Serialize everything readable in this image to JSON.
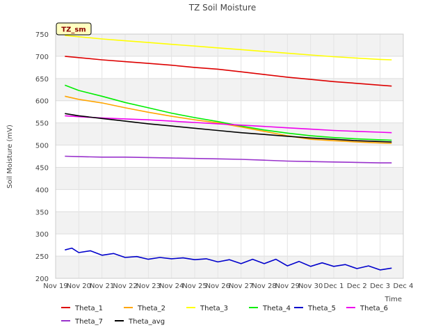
{
  "chart_data": {
    "type": "line",
    "title": "TZ Soil Moisture",
    "xlabel": "Time",
    "ylabel": "Soil Moisture (mV)",
    "badge": "TZ_sm",
    "ylim": [
      200,
      750
    ],
    "yticks": [
      200,
      250,
      300,
      350,
      400,
      450,
      500,
      550,
      600,
      650,
      700,
      750
    ],
    "xlim": [
      0,
      15
    ],
    "xticks": [
      {
        "pos": 0,
        "label": "Nov 19"
      },
      {
        "pos": 1,
        "label": "Nov 20"
      },
      {
        "pos": 2,
        "label": "Nov 21"
      },
      {
        "pos": 3,
        "label": "Nov 22"
      },
      {
        "pos": 4,
        "label": "Nov 23"
      },
      {
        "pos": 5,
        "label": "Nov 24"
      },
      {
        "pos": 6,
        "label": "Nov 25"
      },
      {
        "pos": 7,
        "label": "Nov 26"
      },
      {
        "pos": 8,
        "label": "Nov 27"
      },
      {
        "pos": 9,
        "label": "Nov 28"
      },
      {
        "pos": 10,
        "label": "Nov 29"
      },
      {
        "pos": 11,
        "label": "Nov 30"
      },
      {
        "pos": 12,
        "label": "Dec 1"
      },
      {
        "pos": 13,
        "label": "Dec 2"
      },
      {
        "pos": 14,
        "label": "Dec 3"
      },
      {
        "pos": 15,
        "label": "Dec 4"
      }
    ],
    "grid": true,
    "series": [
      {
        "name": "Theta_1",
        "color": "#dd0000",
        "x": [
          0.4,
          1,
          2,
          3,
          4,
          5,
          6,
          7,
          8,
          9,
          10,
          11,
          12,
          13,
          14,
          14.5
        ],
        "y": [
          700,
          697,
          692,
          688,
          684,
          680,
          675,
          671,
          665,
          659,
          653,
          648,
          643,
          639,
          635,
          633
        ]
      },
      {
        "name": "Theta_2",
        "color": "#ffa500",
        "x": [
          0.4,
          1,
          2,
          3,
          4,
          5,
          6,
          7,
          8,
          9,
          10,
          11,
          12,
          13,
          14,
          14.5
        ],
        "y": [
          610,
          603,
          595,
          584,
          574,
          565,
          557,
          550,
          541,
          531,
          521,
          513,
          510,
          507,
          505,
          504
        ]
      },
      {
        "name": "Theta_3",
        "color": "#ffff00",
        "x": [
          0.4,
          1,
          2,
          3,
          4,
          5,
          6,
          7,
          8,
          9,
          10,
          11,
          12,
          13,
          14,
          14.5
        ],
        "y": [
          747,
          744,
          739,
          735,
          731,
          727,
          723,
          719,
          715,
          711,
          707,
          703,
          699,
          696,
          693,
          692
        ]
      },
      {
        "name": "Theta_4",
        "color": "#00ee00",
        "x": [
          0.4,
          1,
          2,
          3,
          4,
          5,
          6,
          7,
          8,
          9,
          10,
          11,
          12,
          13,
          14,
          14.5
        ],
        "y": [
          635,
          623,
          610,
          596,
          584,
          572,
          562,
          553,
          543,
          534,
          527,
          521,
          517,
          514,
          512,
          511
        ]
      },
      {
        "name": "Theta_5",
        "color": "#0000cc",
        "x": [
          0.4,
          0.7,
          1,
          1.5,
          2,
          2.5,
          3,
          3.5,
          4,
          4.5,
          5,
          5.5,
          6,
          6.5,
          7,
          7.5,
          8,
          8.5,
          9,
          9.5,
          10,
          10.5,
          11,
          11.5,
          12,
          12.5,
          13,
          13.5,
          14,
          14.5
        ],
        "y": [
          264,
          268,
          258,
          262,
          252,
          256,
          247,
          249,
          243,
          247,
          244,
          246,
          242,
          244,
          237,
          242,
          233,
          243,
          233,
          243,
          228,
          238,
          227,
          235,
          227,
          231,
          222,
          228,
          219,
          223
        ]
      },
      {
        "name": "Theta_6",
        "color": "#ee00ee",
        "x": [
          0.4,
          1,
          2,
          3,
          4,
          5,
          6,
          7,
          8,
          9,
          10,
          11,
          12,
          13,
          14,
          14.5
        ],
        "y": [
          566,
          564,
          561,
          559,
          557,
          554,
          551,
          548,
          545,
          542,
          539,
          536,
          533,
          531,
          529,
          528
        ]
      },
      {
        "name": "Theta_7",
        "color": "#9932cc",
        "x": [
          0.4,
          1,
          2,
          3,
          4,
          5,
          6,
          7,
          8,
          9,
          10,
          11,
          12,
          13,
          14,
          14.5
        ],
        "y": [
          475,
          474,
          473,
          473,
          472,
          471,
          470,
          469,
          468,
          466,
          464,
          463,
          462,
          461,
          460,
          460
        ]
      },
      {
        "name": "Theta_avg",
        "color": "#000000",
        "x": [
          0.4,
          1,
          2,
          3,
          4,
          5,
          6,
          7,
          8,
          9,
          10,
          11,
          12,
          13,
          14,
          14.5
        ],
        "y": [
          571,
          566,
          560,
          554,
          548,
          543,
          538,
          533,
          528,
          524,
          520,
          516,
          513,
          510,
          508,
          507
        ]
      }
    ]
  }
}
